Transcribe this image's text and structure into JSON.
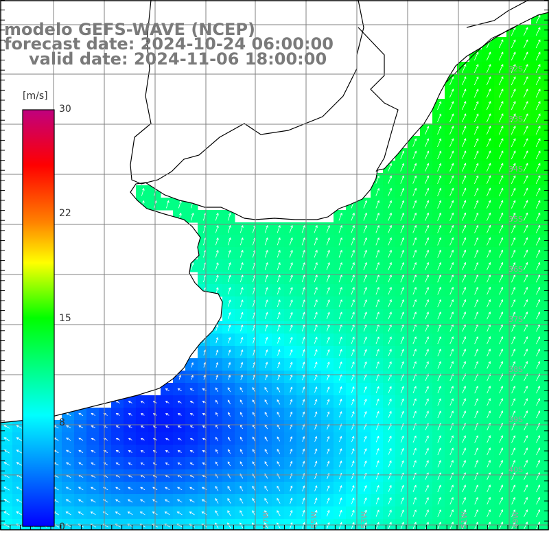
{
  "titles": {
    "model": "modelo GEFS-WAVE (NCEP)",
    "forecast": "forecast date: 2024-10-24 06:00:00",
    "valid": "valid date: 2024-11-06 18:00:00"
  },
  "colorbar": {
    "unit": "[m/s]",
    "ticks": [
      "30",
      "22",
      "15",
      "8",
      "0"
    ],
    "range": [
      0,
      30
    ],
    "colors": [
      "#0000ff",
      "#00ffff",
      "#00ff00",
      "#ffff00",
      "#ff7f00",
      "#ff0000",
      "#c0007f"
    ]
  },
  "lat_labels": [
    "32S",
    "33S",
    "34S",
    "35S",
    "36S",
    "37S",
    "38S",
    "39S",
    "40S"
  ],
  "lon_labels": [
    "57W",
    "55W",
    "53W",
    "51W",
    "49W"
  ],
  "field": {
    "description_units": "m/s",
    "land_color": "#ffffff",
    "min_speed": 2,
    "max_speed": 16
  }
}
